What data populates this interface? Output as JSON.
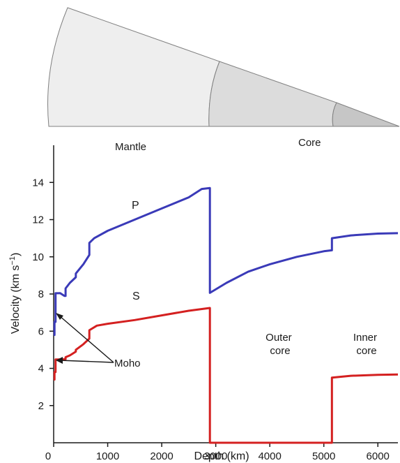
{
  "chart_data": {
    "type": "line",
    "xlabel": "Depth (km)",
    "ylabel_main": "Velocity (km s",
    "ylabel_sup": "−1",
    "ylabel_close": ")",
    "xlim": [
      0,
      6371
    ],
    "ylim": [
      0,
      16
    ],
    "xticks": [
      0,
      1000,
      2000,
      3000,
      4000,
      5000,
      6000
    ],
    "yticks": [
      2,
      4,
      6,
      8,
      10,
      12,
      14
    ],
    "grid": false,
    "colors": {
      "P": "#3a3ab8",
      "S": "#d42020",
      "axis": "#1a1a1a"
    },
    "series": [
      {
        "name": "P",
        "points": [
          [
            0,
            5.8
          ],
          [
            15,
            5.8
          ],
          [
            15,
            6.5
          ],
          [
            35,
            6.5
          ],
          [
            35,
            8.04
          ],
          [
            80,
            8.04
          ],
          [
            120,
            8.05
          ],
          [
            200,
            7.9
          ],
          [
            220,
            7.9
          ],
          [
            220,
            8.3
          ],
          [
            300,
            8.6
          ],
          [
            410,
            8.9
          ],
          [
            410,
            9.1
          ],
          [
            550,
            9.6
          ],
          [
            660,
            10.1
          ],
          [
            660,
            10.75
          ],
          [
            750,
            11.0
          ],
          [
            1000,
            11.4
          ],
          [
            1500,
            12.0
          ],
          [
            2000,
            12.6
          ],
          [
            2500,
            13.2
          ],
          [
            2740,
            13.65
          ],
          [
            2891,
            13.7
          ],
          [
            2891,
            8.06
          ],
          [
            3200,
            8.6
          ],
          [
            3600,
            9.2
          ],
          [
            4000,
            9.6
          ],
          [
            4500,
            10.0
          ],
          [
            5000,
            10.3
          ],
          [
            5150,
            10.35
          ],
          [
            5150,
            11.0
          ],
          [
            5500,
            11.15
          ],
          [
            6000,
            11.25
          ],
          [
            6371,
            11.27
          ]
        ]
      },
      {
        "name": "S",
        "points": [
          [
            0,
            3.4
          ],
          [
            15,
            3.4
          ],
          [
            15,
            3.8
          ],
          [
            35,
            3.8
          ],
          [
            35,
            4.48
          ],
          [
            80,
            4.48
          ],
          [
            220,
            4.5
          ],
          [
            220,
            4.6
          ],
          [
            300,
            4.7
          ],
          [
            410,
            4.9
          ],
          [
            410,
            5.0
          ],
          [
            550,
            5.3
          ],
          [
            660,
            5.6
          ],
          [
            660,
            6.05
          ],
          [
            800,
            6.3
          ],
          [
            1000,
            6.4
          ],
          [
            1500,
            6.6
          ],
          [
            2000,
            6.85
          ],
          [
            2500,
            7.1
          ],
          [
            2891,
            7.25
          ],
          [
            2891,
            0
          ],
          [
            5150,
            0
          ],
          [
            5150,
            3.5
          ],
          [
            5500,
            3.6
          ],
          [
            6000,
            3.65
          ],
          [
            6371,
            3.67
          ]
        ]
      }
    ],
    "annotations": {
      "mantle": "Mantle",
      "core": "Core",
      "outer_core": [
        "Outer",
        "core"
      ],
      "inner_core": [
        "Inner",
        "core"
      ],
      "moho": "Moho"
    }
  }
}
